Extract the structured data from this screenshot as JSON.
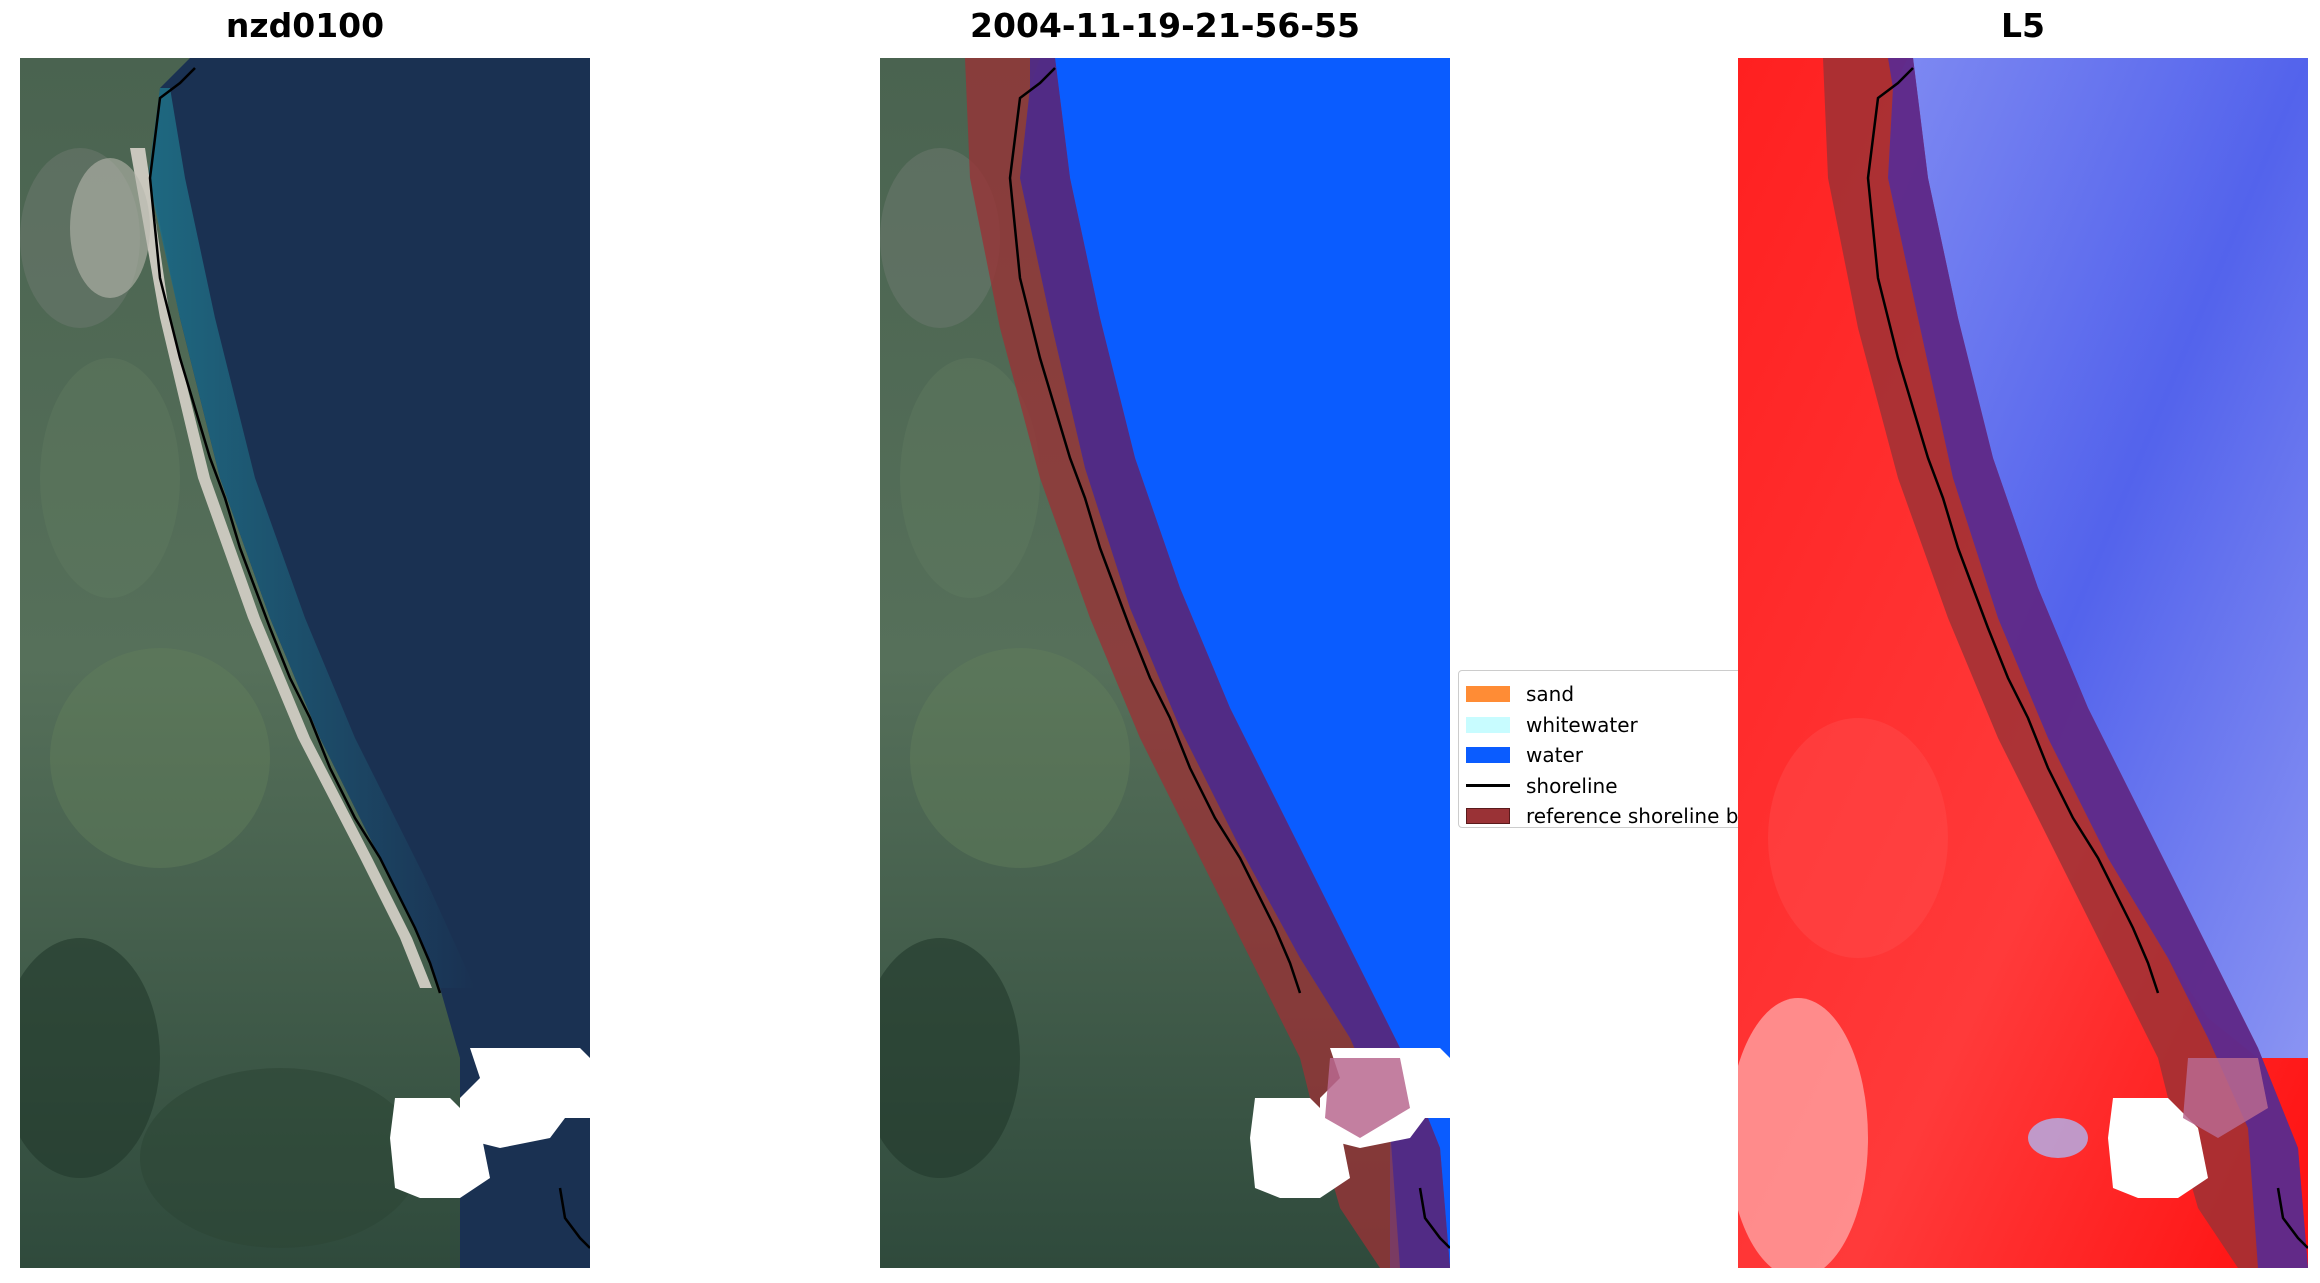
{
  "panels": {
    "left": {
      "title": "nzd0100"
    },
    "middle": {
      "title": "2004-11-19-21-56-55"
    },
    "right": {
      "title": "L5"
    }
  },
  "legend": {
    "items": [
      {
        "label": "sand",
        "color": "#ff8c35",
        "kind": "swatch"
      },
      {
        "label": "whitewater",
        "color": "#c8fcff",
        "kind": "swatch"
      },
      {
        "label": "water",
        "color": "#0a5cff",
        "kind": "swatch"
      },
      {
        "label": "shoreline",
        "color": "#000000",
        "kind": "line"
      },
      {
        "label": "reference shoreline b",
        "color": "#9a3236",
        "kind": "swatch"
      }
    ]
  },
  "colors": {
    "ocean_dark": "#1a3152",
    "land_green": "#3f5a48",
    "sand_beach": "#c9c7bd",
    "water_class": "#0a5cff",
    "buffer": "#9a3236",
    "index_red": "#ff1a1a",
    "index_blue": "#5a6cf0"
  }
}
